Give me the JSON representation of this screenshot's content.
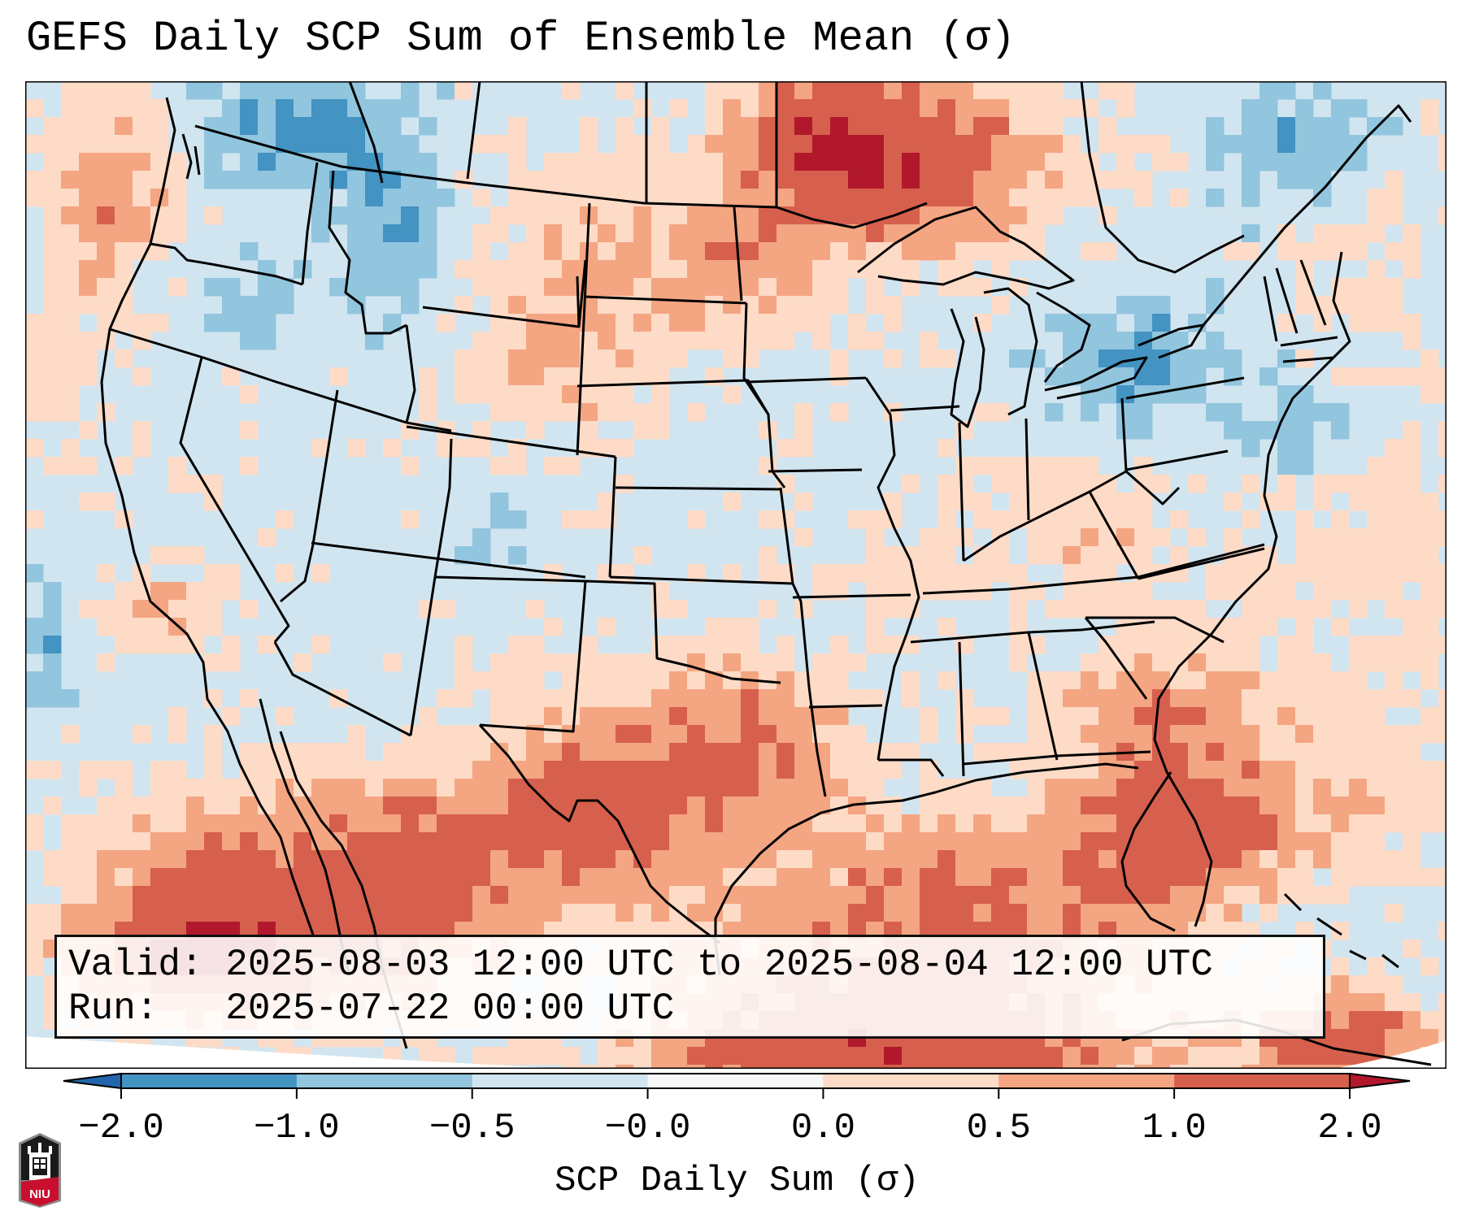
{
  "title": "GEFS Daily SCP Sum of Ensemble Mean (σ)",
  "info_box": {
    "valid_label": "Valid:",
    "valid_value": "2025-08-03 12:00 UTC to 2025-08-04 12:00 UTC",
    "run_label": "Run:",
    "run_value": "2025-07-22 00:00 UTC"
  },
  "colorbar": {
    "label": "SCP Daily Sum (σ)",
    "tick_labels": [
      "−2.0",
      "−1.0",
      "−0.5",
      "−0.0",
      "0.0",
      "0.5",
      "1.0",
      "2.0"
    ],
    "boundaries": [
      -2.0,
      -1.0,
      -0.5,
      -0.0,
      0.0,
      0.5,
      1.0,
      2.0
    ],
    "extend": "both",
    "colors": {
      "under": "#2166ac",
      "bins": [
        "#4393c3",
        "#92c5de",
        "#d1e5f0",
        "#f7f7f7",
        "#fddbc7",
        "#f4a582",
        "#d6604d"
      ],
      "over": "#b2182b"
    }
  },
  "map": {
    "region": "Contiguous United States with southern Canada, northern Mexico, Gulf of Mexico",
    "projection": "Lambert Conformal",
    "features": [
      "state borders",
      "coastlines",
      "country borders"
    ],
    "highlights": [
      {
        "area": "Northwestern Ontario / northern Minnesota",
        "level": "1.0 to 2.0, locally above 2.0"
      },
      {
        "area": "Pacific Northwest offshore",
        "level": "0.5 to 1.0"
      },
      {
        "area": "Northern Plains (Montana, Dakotas, Wyoming)",
        "level": "0.0 to 1.0"
      },
      {
        "area": "Texas and northern Mexico",
        "level": "0.5 to 2.0, locally above 2.0"
      },
      {
        "area": "Southeast (Georgia, Florida)",
        "level": "0.5 to 2.0"
      },
      {
        "area": "Gulf of Mexico",
        "level": "0.0 to 2.0"
      },
      {
        "area": "Great Lakes / New York / Mid-Atlantic coast",
        "level": "-1.0 to -0.5"
      },
      {
        "area": "Interior West and Midwest",
        "level": "-0.5 to -0.0"
      }
    ]
  },
  "logo": {
    "text": "NIU",
    "icon": "niu-castle-logo"
  }
}
